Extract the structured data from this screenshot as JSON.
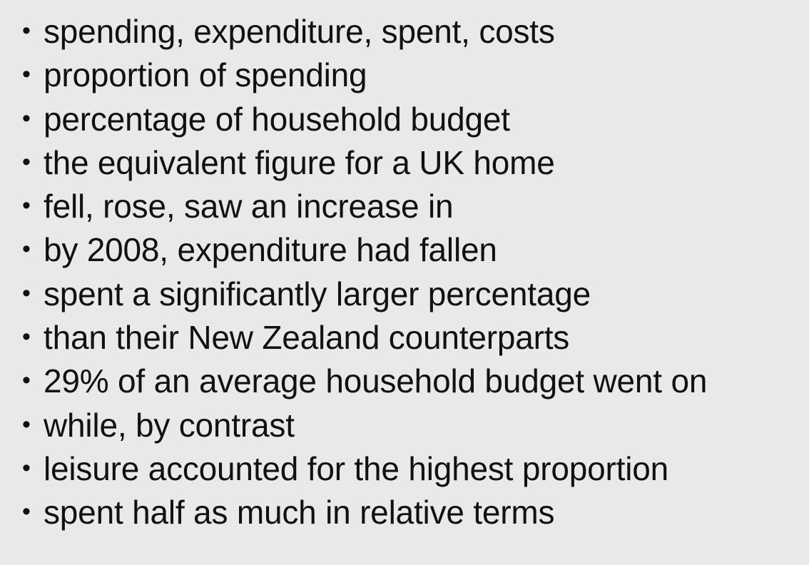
{
  "bullet_symbol": "•",
  "phrases": [
    "spending, expenditure, spent, costs",
    "proportion of spending",
    "percentage of household budget",
    "the equivalent figure for a UK home",
    "fell, rose, saw an increase in",
    "by 2008, expenditure had fallen",
    "spent a significantly larger percentage",
    "than their New Zealand counterparts",
    "29% of an average household budget went on",
    "while, by contrast",
    "leisure accounted for the highest proportion",
    "spent half as much in relative terms"
  ]
}
